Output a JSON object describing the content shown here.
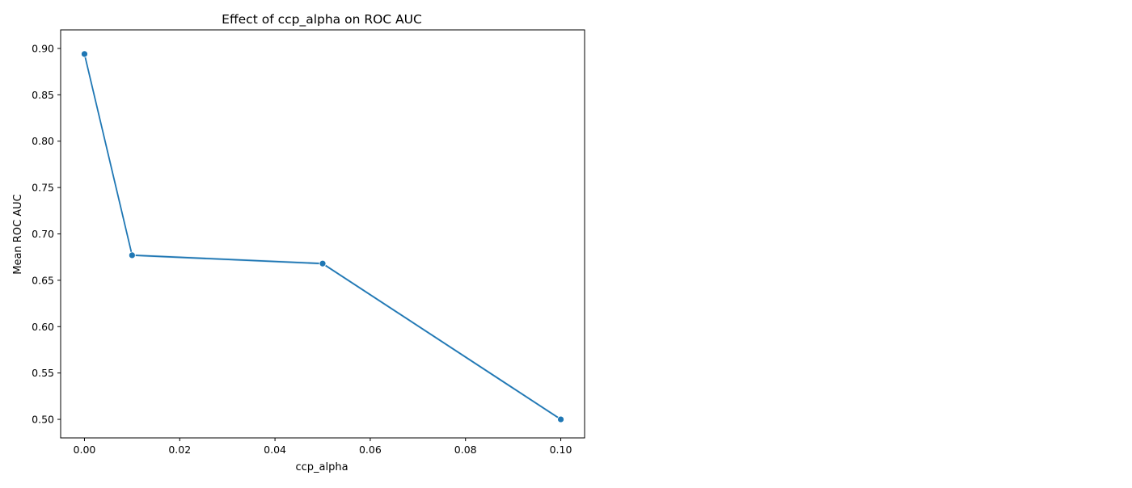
{
  "chart_data": {
    "type": "line",
    "title": "Effect of ccp_alpha on ROC AUC",
    "xlabel": "ccp_alpha",
    "ylabel": "Mean ROC AUC",
    "x": [
      0.0,
      0.01,
      0.05,
      0.1
    ],
    "series": [
      {
        "values": [
          0.894,
          0.677,
          0.668,
          0.5
        ],
        "color": "#1f77b4",
        "marker": "circle"
      }
    ],
    "xlim": [
      -0.005,
      0.105
    ],
    "ylim": [
      0.48,
      0.92
    ],
    "xticks": [
      0.0,
      0.02,
      0.04,
      0.06,
      0.08,
      0.1
    ],
    "xtick_labels": [
      "0.00",
      "0.02",
      "0.04",
      "0.06",
      "0.08",
      "0.10"
    ],
    "yticks": [
      0.5,
      0.55,
      0.6,
      0.65,
      0.7,
      0.75,
      0.8,
      0.85,
      0.9
    ],
    "ytick_labels": [
      "0.50",
      "0.55",
      "0.60",
      "0.65",
      "0.70",
      "0.75",
      "0.80",
      "0.85",
      "0.90"
    ],
    "grid": false,
    "legend": "none"
  }
}
